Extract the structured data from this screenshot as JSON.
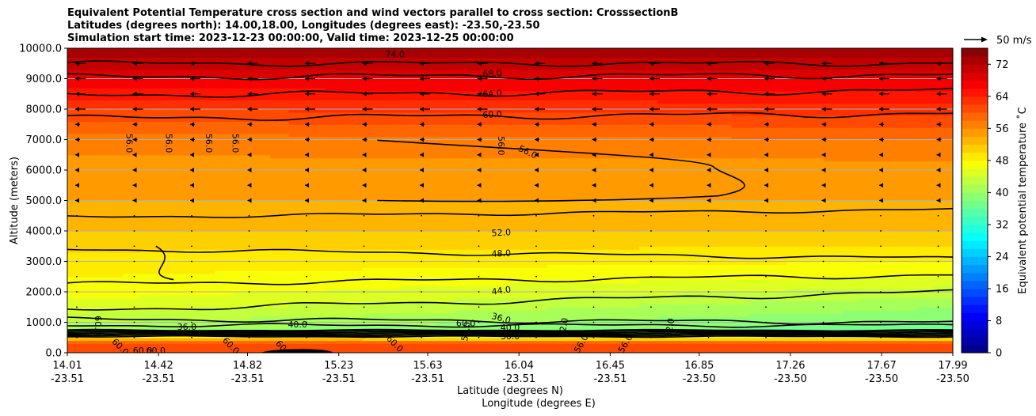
{
  "chart_data": {
    "type": "heatmap",
    "title_lines": [
      "Equivalent Potential Temperature cross section and wind vectors parallel to cross section: CrosssectionB",
      "Latitudes (degrees north): 14.00,18.00, Longitudes (degrees east): -23.50,-23.50",
      "Simulation start time: 2023-12-23 00:00:00, Valid time: 2023-12-25 00:00:00"
    ],
    "xlabel_lines": [
      "Latitude (degrees N)",
      "Longitude (degrees E)"
    ],
    "ylabel": "Altitude (meters)",
    "colorbar_label": "Equivalent potential temperature ˚C",
    "ylim": [
      0,
      10000
    ],
    "xlim": [
      14.01,
      17.99
    ],
    "y_ticks": [
      "0.0",
      "1000.0",
      "2000.0",
      "3000.0",
      "4000.0",
      "5000.0",
      "6000.0",
      "7000.0",
      "8000.0",
      "9000.0",
      "10000.0"
    ],
    "y_tick_values": [
      0,
      1000,
      2000,
      3000,
      4000,
      5000,
      6000,
      7000,
      8000,
      9000,
      10000
    ],
    "x_ticks": [
      {
        "lat": "14.01",
        "lon": "-23.51"
      },
      {
        "lat": "14.42",
        "lon": "-23.51"
      },
      {
        "lat": "14.82",
        "lon": "-23.51"
      },
      {
        "lat": "15.23",
        "lon": "-23.51"
      },
      {
        "lat": "15.63",
        "lon": "-23.51"
      },
      {
        "lat": "16.04",
        "lon": "-23.51"
      },
      {
        "lat": "16.45",
        "lon": "-23.51"
      },
      {
        "lat": "16.85",
        "lon": "-23.50"
      },
      {
        "lat": "17.26",
        "lon": "-23.50"
      },
      {
        "lat": "17.67",
        "lon": "-23.50"
      },
      {
        "lat": "17.99",
        "lon": "-23.50"
      }
    ],
    "colorbar": {
      "min": 0,
      "max": 76,
      "step": 2,
      "ticks": [
        "0",
        "8",
        "16",
        "24",
        "32",
        "40",
        "48",
        "56",
        "64",
        "72"
      ],
      "tick_values": [
        0,
        8,
        16,
        24,
        32,
        40,
        48,
        56,
        64,
        72
      ],
      "colormap": "jet"
    },
    "field_profile": {
      "altitude_m": [
        0,
        300,
        500,
        700,
        1000,
        1500,
        2000,
        2500,
        3000,
        4000,
        5000,
        6000,
        7000,
        8000,
        9000,
        10000
      ],
      "theta_e_west_C": [
        60,
        62,
        50,
        40,
        42,
        45,
        47,
        48,
        49,
        52,
        54,
        55,
        57,
        62,
        68,
        74
      ],
      "theta_e_east_C": [
        60,
        62,
        46,
        36,
        38,
        40,
        43,
        46,
        48,
        52,
        54,
        55,
        58,
        63,
        68,
        74
      ]
    },
    "contour_labels": [
      "74.0",
      "68.0",
      "64.0",
      "60.0",
      "56.0",
      "56.0",
      "56.0",
      "56.0",
      "56.0",
      "56.0",
      "52.0",
      "48.0",
      "44.0",
      "36.0",
      "36.0",
      "40.0",
      "40.0",
      "36.0",
      "36.0",
      "52.0",
      "52.0",
      "56.0",
      "56.0",
      "56.0",
      "60.0",
      "60.0",
      "60.0",
      "60.0",
      "60.0",
      "60.0",
      "60.0",
      "60.0"
    ],
    "wind_vectors": {
      "reference_label": "50 m/s",
      "reference_speed_ms": 50,
      "direction_aloft": "westward",
      "rows_m": [
        9500,
        9000,
        8500,
        8000,
        7500,
        7000,
        6500,
        6000,
        5500,
        5000
      ]
    },
    "grid": "y-only"
  }
}
